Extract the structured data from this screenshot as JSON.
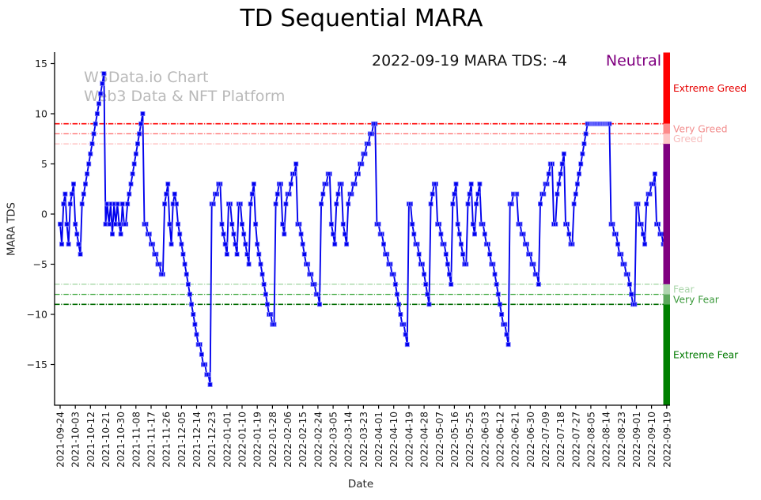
{
  "header": {
    "title": "TD Sequential MARA"
  },
  "watermark": {
    "line1": "W3Data.io Chart",
    "line2": "Web3 Data & NFT Platform"
  },
  "annotation": {
    "text": "2022-09-19 MARA TDS: -4",
    "sentiment": "Neutral",
    "sentiment_color": "#800080"
  },
  "axes": {
    "x_label": "Date",
    "y_label": "MARA TDS"
  },
  "chart_data": {
    "type": "line",
    "title": "TD Sequential MARA",
    "xlabel": "Date",
    "ylabel": "MARA TDS",
    "x_start_date": "2021-09-24",
    "x_end_date": "2022-09-19",
    "x_tick_interval_days": 9,
    "x_tick_labels": [
      "2021-09-24",
      "2021-10-03",
      "2021-10-12",
      "2021-10-21",
      "2021-10-30",
      "2021-11-08",
      "2021-11-17",
      "2021-11-26",
      "2021-12-05",
      "2021-12-14",
      "2021-12-23",
      "2022-01-01",
      "2022-01-10",
      "2022-01-19",
      "2022-01-28",
      "2022-02-06",
      "2022-02-15",
      "2022-02-24",
      "2022-03-05",
      "2022-03-14",
      "2022-03-23",
      "2022-04-01",
      "2022-04-10",
      "2022-04-19",
      "2022-04-28",
      "2022-05-07",
      "2022-05-16",
      "2022-05-25",
      "2022-06-03",
      "2022-06-12",
      "2022-06-21",
      "2022-06-30",
      "2022-07-09",
      "2022-07-18",
      "2022-07-27",
      "2022-08-05",
      "2022-08-14",
      "2022-08-23",
      "2022-09-01",
      "2022-09-10",
      "2022-09-19"
    ],
    "ylim": [
      -19.1,
      16.1
    ],
    "y_ticks": [
      15,
      10,
      5,
      0,
      -5,
      -10,
      -15
    ],
    "grid": false,
    "legend": "none",
    "series": [
      {
        "name": "MARA TDS",
        "color": "#0202ee",
        "marker": "square",
        "marker_edge_color": "#7a7aff",
        "values": [
          -1,
          -3,
          1,
          2,
          -1,
          -3,
          1,
          2,
          3,
          -1,
          -2,
          -3,
          -4,
          1,
          2,
          3,
          4,
          5,
          6,
          7,
          8,
          9,
          10,
          11,
          12,
          13,
          14,
          -1,
          1,
          -1,
          1,
          -2,
          1,
          -1,
          1,
          -1,
          -2,
          1,
          -1,
          -1,
          1,
          2,
          3,
          4,
          5,
          6,
          7,
          8,
          9,
          10,
          -1,
          -1,
          -2,
          -2,
          -3,
          -3,
          -4,
          -4,
          -5,
          -5,
          -6,
          -6,
          1,
          2,
          3,
          -1,
          -3,
          1,
          2,
          1,
          -1,
          -2,
          -3,
          -4,
          -5,
          -6,
          -7,
          -8,
          -9,
          -10,
          -11,
          -12,
          -13,
          -13,
          -14,
          -15,
          -15,
          -16,
          -16,
          -17,
          1,
          1,
          2,
          2,
          3,
          3,
          -1,
          -2,
          -3,
          -4,
          1,
          1,
          -1,
          -2,
          -3,
          -4,
          1,
          1,
          -1,
          -2,
          -3,
          -4,
          -5,
          1,
          2,
          3,
          -1,
          -3,
          -4,
          -5,
          -6,
          -7,
          -8,
          -9,
          -10,
          -10,
          -11,
          -11,
          1,
          2,
          3,
          3,
          -1,
          -2,
          1,
          2,
          2,
          3,
          4,
          4,
          5,
          -1,
          -1,
          -2,
          -3,
          -4,
          -5,
          -5,
          -6,
          -6,
          -7,
          -7,
          -8,
          -8,
          -9,
          1,
          2,
          3,
          3,
          4,
          4,
          -1,
          -2,
          -3,
          1,
          2,
          3,
          3,
          -1,
          -2,
          -3,
          1,
          2,
          2,
          3,
          3,
          4,
          4,
          5,
          5,
          6,
          6,
          7,
          7,
          8,
          8,
          9,
          9,
          -1,
          -1,
          -2,
          -2,
          -3,
          -4,
          -4,
          -5,
          -5,
          -6,
          -6,
          -7,
          -8,
          -9,
          -10,
          -11,
          -11,
          -12,
          -13,
          1,
          1,
          -1,
          -2,
          -3,
          -3,
          -4,
          -5,
          -5,
          -6,
          -7,
          -8,
          -9,
          1,
          2,
          3,
          3,
          -1,
          -1,
          -2,
          -3,
          -3,
          -4,
          -5,
          -6,
          -7,
          1,
          2,
          3,
          -1,
          -2,
          -3,
          -4,
          -5,
          -5,
          1,
          2,
          3,
          -1,
          -2,
          1,
          2,
          3,
          -1,
          -1,
          -2,
          -3,
          -3,
          -4,
          -5,
          -5,
          -6,
          -7,
          -8,
          -9,
          -10,
          -11,
          -11,
          -12,
          -13,
          1,
          1,
          2,
          2,
          2,
          -1,
          -1,
          -2,
          -2,
          -3,
          -3,
          -4,
          -4,
          -5,
          -5,
          -6,
          -6,
          -7,
          1,
          2,
          2,
          3,
          3,
          4,
          5,
          5,
          -1,
          -1,
          2,
          3,
          4,
          5,
          6,
          -1,
          -1,
          -2,
          -3,
          -3,
          1,
          2,
          3,
          4,
          5,
          6,
          7,
          8,
          9,
          9,
          9,
          9,
          9,
          9,
          9,
          9,
          9,
          9,
          9,
          9,
          9,
          9,
          -1,
          -1,
          -2,
          -2,
          -3,
          -4,
          -4,
          -5,
          -5,
          -6,
          -6,
          -7,
          -8,
          -9,
          -9,
          1,
          1,
          -1,
          -1,
          -2,
          -3,
          1,
          2,
          2,
          3,
          3,
          4,
          -1,
          -1,
          -2,
          -2,
          -3,
          -3,
          -4
        ]
      }
    ],
    "thresholds": [
      {
        "value": 9,
        "color": "#ff0000",
        "width": 1.6
      },
      {
        "value": 8,
        "color": "#ff6666",
        "width": 1.2
      },
      {
        "value": 7,
        "color": "#ffb8b8",
        "width": 1.2
      },
      {
        "value": -7,
        "color": "#9fd49f",
        "width": 1.2
      },
      {
        "value": -8,
        "color": "#2fa02f",
        "width": 1.3
      },
      {
        "value": -9,
        "color": "#006b00",
        "width": 1.6
      }
    ],
    "zones": [
      {
        "label": "Extreme Greed",
        "from": 9,
        "to": 16.1,
        "color": "#fe0000",
        "label_color": "#e60000",
        "show_label": true
      },
      {
        "label": "Very Greed",
        "from": 8,
        "to": 9,
        "color": "#fd8a8a",
        "label_color": "#f28c8c",
        "show_label": true
      },
      {
        "label": "Greed",
        "from": 7,
        "to": 8,
        "color": "#fec6c6",
        "label_color": "#f7bdbd",
        "show_label": true
      },
      {
        "label": "Neutral",
        "from": -7,
        "to": 7,
        "color": "#800080",
        "label_color": "#800080",
        "show_label": false
      },
      {
        "label": "Fear",
        "from": -8,
        "to": -7,
        "color": "#aed4ae",
        "label_color": "#abd6ab",
        "show_label": true
      },
      {
        "label": "Very Fear",
        "from": -9,
        "to": -8,
        "color": "#5ca85c",
        "label_color": "#3c9a3c",
        "show_label": true
      },
      {
        "label": "Extreme Fear",
        "from": -19.1,
        "to": -9,
        "color": "#008000",
        "label_color": "#007a00",
        "show_label": true
      }
    ]
  }
}
